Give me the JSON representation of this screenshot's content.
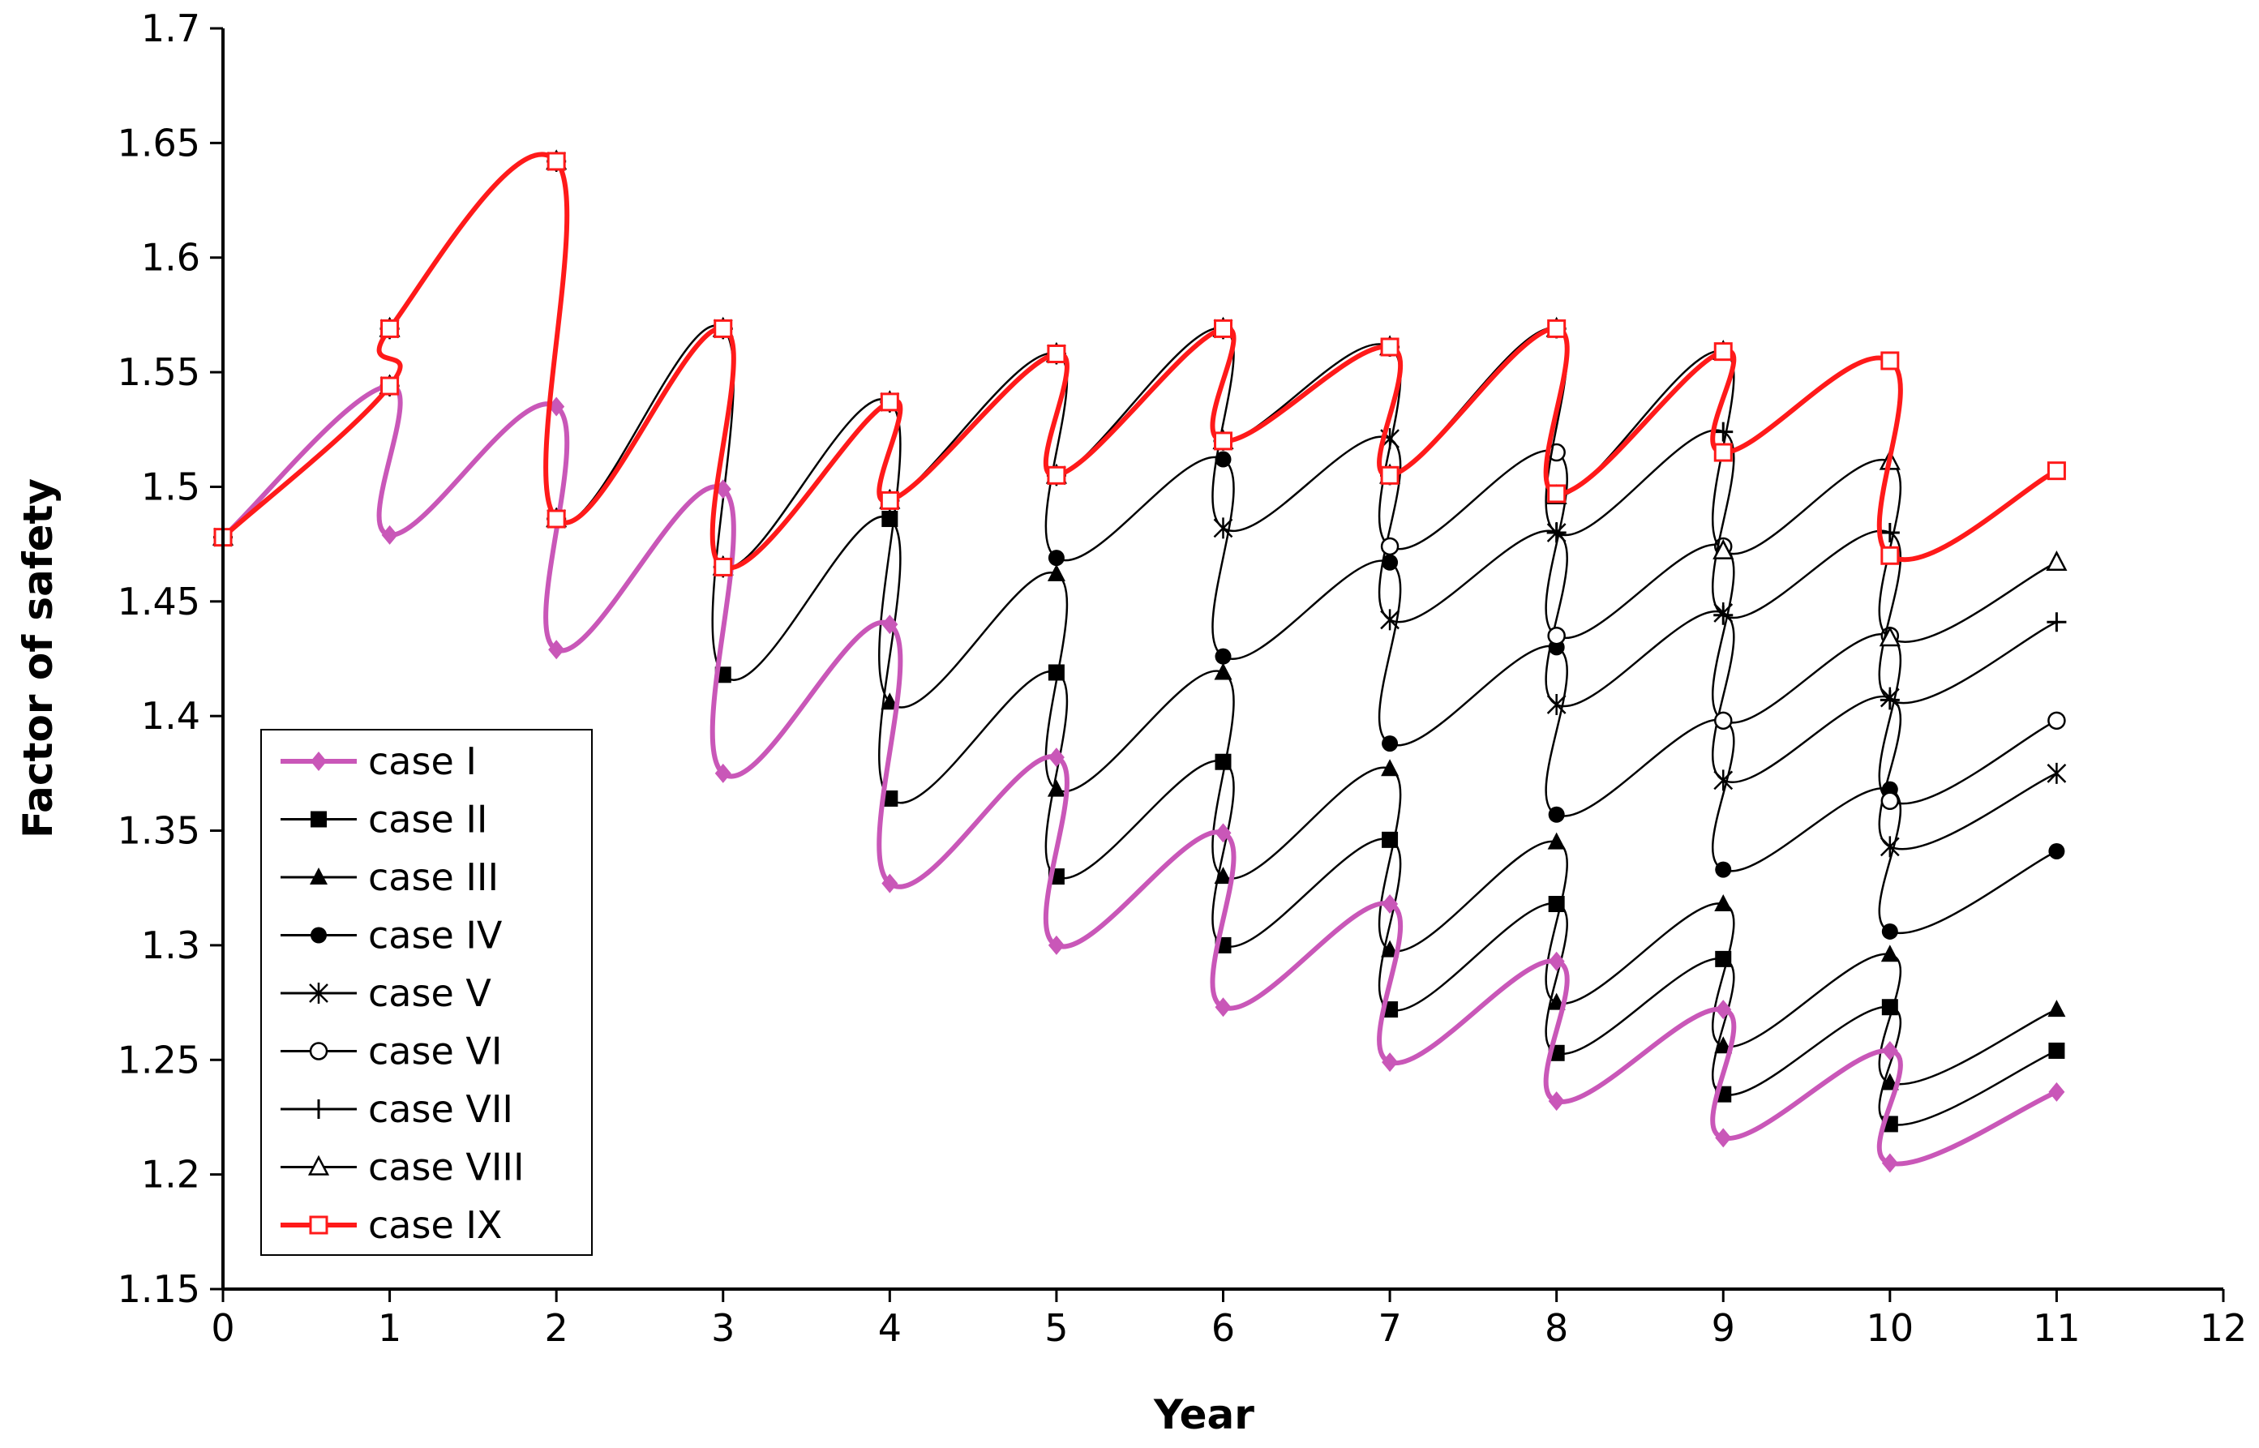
{
  "chart_data": {
    "type": "line",
    "title": "",
    "xlabel": "Year",
    "ylabel": "Factor of safety",
    "xlim": [
      0,
      12
    ],
    "ylim": [
      1.15,
      1.7
    ],
    "xticks": [
      "0",
      "1",
      "2",
      "3",
      "4",
      "5",
      "6",
      "7",
      "8",
      "9",
      "10",
      "11",
      "12"
    ],
    "yticks": [
      "1.15",
      "1.2",
      "1.25",
      "1.3",
      "1.35",
      "1.4",
      "1.45",
      "1.5",
      "1.55",
      "1.6",
      "1.65",
      "1.7"
    ],
    "legend_position": "lower-left",
    "series": [
      {
        "name": "case I",
        "color": "#c957b8",
        "marker": "diamond-filled",
        "points": [
          [
            0,
            1.478
          ],
          [
            1,
            1.544
          ],
          [
            1,
            1.479
          ],
          [
            2,
            1.535
          ],
          [
            2,
            1.429
          ],
          [
            3,
            1.499
          ],
          [
            3,
            1.375
          ],
          [
            4,
            1.44
          ],
          [
            4,
            1.327
          ],
          [
            5,
            1.382
          ],
          [
            5,
            1.3
          ],
          [
            6,
            1.349
          ],
          [
            6,
            1.273
          ],
          [
            7,
            1.318
          ],
          [
            7,
            1.249
          ],
          [
            8,
            1.293
          ],
          [
            8,
            1.232
          ],
          [
            9,
            1.272
          ],
          [
            9,
            1.216
          ],
          [
            10,
            1.254
          ],
          [
            10,
            1.205
          ],
          [
            11,
            1.236
          ]
        ]
      },
      {
        "name": "case II",
        "color": "#000000",
        "marker": "square-filled",
        "points": [
          [
            0,
            1.478
          ],
          [
            1,
            1.544
          ],
          [
            1,
            1.569
          ],
          [
            2,
            1.642
          ],
          [
            2,
            1.486
          ],
          [
            3,
            1.569
          ],
          [
            3,
            1.418
          ],
          [
            4,
            1.486
          ],
          [
            4,
            1.364
          ],
          [
            5,
            1.419
          ],
          [
            5,
            1.33
          ],
          [
            6,
            1.38
          ],
          [
            6,
            1.3
          ],
          [
            7,
            1.346
          ],
          [
            7,
            1.272
          ],
          [
            8,
            1.318
          ],
          [
            8,
            1.253
          ],
          [
            9,
            1.294
          ],
          [
            9,
            1.235
          ],
          [
            10,
            1.273
          ],
          [
            10,
            1.222
          ],
          [
            11,
            1.254
          ]
        ]
      },
      {
        "name": "case III",
        "color": "#000000",
        "marker": "triangle-filled",
        "points": [
          [
            0,
            1.478
          ],
          [
            1,
            1.544
          ],
          [
            1,
            1.569
          ],
          [
            2,
            1.642
          ],
          [
            2,
            1.486
          ],
          [
            3,
            1.569
          ],
          [
            3,
            1.465
          ],
          [
            4,
            1.537
          ],
          [
            4,
            1.406
          ],
          [
            5,
            1.462
          ],
          [
            5,
            1.368
          ],
          [
            6,
            1.419
          ],
          [
            6,
            1.33
          ],
          [
            7,
            1.377
          ],
          [
            7,
            1.298
          ],
          [
            8,
            1.345
          ],
          [
            8,
            1.275
          ],
          [
            9,
            1.318
          ],
          [
            9,
            1.256
          ],
          [
            10,
            1.296
          ],
          [
            10,
            1.24
          ],
          [
            11,
            1.272
          ]
        ]
      },
      {
        "name": "case IV",
        "color": "#000000",
        "marker": "circle-filled",
        "points": [
          [
            0,
            1.478
          ],
          [
            1,
            1.544
          ],
          [
            1,
            1.569
          ],
          [
            2,
            1.642
          ],
          [
            2,
            1.486
          ],
          [
            3,
            1.569
          ],
          [
            3,
            1.465
          ],
          [
            4,
            1.537
          ],
          [
            4,
            1.494
          ],
          [
            5,
            1.558
          ],
          [
            5,
            1.469
          ],
          [
            6,
            1.512
          ],
          [
            6,
            1.426
          ],
          [
            7,
            1.467
          ],
          [
            7,
            1.388
          ],
          [
            8,
            1.43
          ],
          [
            8,
            1.357
          ],
          [
            9,
            1.398
          ],
          [
            9,
            1.333
          ],
          [
            10,
            1.368
          ],
          [
            10,
            1.306
          ],
          [
            11,
            1.341
          ]
        ]
      },
      {
        "name": "case V",
        "color": "#000000",
        "marker": "star",
        "points": [
          [
            0,
            1.478
          ],
          [
            1,
            1.544
          ],
          [
            1,
            1.569
          ],
          [
            2,
            1.642
          ],
          [
            2,
            1.486
          ],
          [
            3,
            1.569
          ],
          [
            3,
            1.465
          ],
          [
            4,
            1.537
          ],
          [
            4,
            1.494
          ],
          [
            5,
            1.558
          ],
          [
            5,
            1.505
          ],
          [
            6,
            1.569
          ],
          [
            6,
            1.482
          ],
          [
            7,
            1.521
          ],
          [
            7,
            1.442
          ],
          [
            8,
            1.48
          ],
          [
            8,
            1.405
          ],
          [
            9,
            1.445
          ],
          [
            9,
            1.372
          ],
          [
            10,
            1.408
          ],
          [
            10,
            1.343
          ],
          [
            11,
            1.375
          ]
        ]
      },
      {
        "name": "case VI",
        "color": "#000000",
        "marker": "circle-open",
        "points": [
          [
            0,
            1.478
          ],
          [
            1,
            1.544
          ],
          [
            1,
            1.569
          ],
          [
            2,
            1.642
          ],
          [
            2,
            1.486
          ],
          [
            3,
            1.569
          ],
          [
            3,
            1.465
          ],
          [
            4,
            1.537
          ],
          [
            4,
            1.494
          ],
          [
            5,
            1.558
          ],
          [
            5,
            1.505
          ],
          [
            6,
            1.569
          ],
          [
            6,
            1.52
          ],
          [
            7,
            1.561
          ],
          [
            7,
            1.474
          ],
          [
            8,
            1.515
          ],
          [
            8,
            1.435
          ],
          [
            9,
            1.474
          ],
          [
            9,
            1.398
          ],
          [
            10,
            1.435
          ],
          [
            10,
            1.363
          ],
          [
            11,
            1.398
          ]
        ]
      },
      {
        "name": "case VII",
        "color": "#000000",
        "marker": "plus",
        "points": [
          [
            0,
            1.478
          ],
          [
            1,
            1.544
          ],
          [
            1,
            1.569
          ],
          [
            2,
            1.642
          ],
          [
            2,
            1.486
          ],
          [
            3,
            1.569
          ],
          [
            3,
            1.465
          ],
          [
            4,
            1.537
          ],
          [
            4,
            1.494
          ],
          [
            5,
            1.558
          ],
          [
            5,
            1.505
          ],
          [
            6,
            1.569
          ],
          [
            6,
            1.52
          ],
          [
            7,
            1.561
          ],
          [
            7,
            1.505
          ],
          [
            8,
            1.569
          ],
          [
            8,
            1.48
          ],
          [
            9,
            1.524
          ],
          [
            9,
            1.444
          ],
          [
            10,
            1.48
          ],
          [
            10,
            1.407
          ],
          [
            11,
            1.441
          ]
        ]
      },
      {
        "name": "case VIII",
        "color": "#000000",
        "marker": "triangle-open",
        "points": [
          [
            0,
            1.478
          ],
          [
            1,
            1.544
          ],
          [
            1,
            1.569
          ],
          [
            2,
            1.642
          ],
          [
            2,
            1.486
          ],
          [
            3,
            1.569
          ],
          [
            3,
            1.465
          ],
          [
            4,
            1.537
          ],
          [
            4,
            1.494
          ],
          [
            5,
            1.558
          ],
          [
            5,
            1.505
          ],
          [
            6,
            1.569
          ],
          [
            6,
            1.52
          ],
          [
            7,
            1.561
          ],
          [
            7,
            1.505
          ],
          [
            8,
            1.569
          ],
          [
            8,
            1.496
          ],
          [
            9,
            1.559
          ],
          [
            9,
            1.472
          ],
          [
            10,
            1.511
          ],
          [
            10,
            1.434
          ],
          [
            11,
            1.467
          ]
        ]
      },
      {
        "name": "case IX",
        "color": "#ff1a1a",
        "marker": "square-open",
        "points": [
          [
            0,
            1.478
          ],
          [
            1,
            1.544
          ],
          [
            1,
            1.569
          ],
          [
            2,
            1.642
          ],
          [
            2,
            1.486
          ],
          [
            3,
            1.569
          ],
          [
            3,
            1.465
          ],
          [
            4,
            1.537
          ],
          [
            4,
            1.494
          ],
          [
            5,
            1.558
          ],
          [
            5,
            1.505
          ],
          [
            6,
            1.569
          ],
          [
            6,
            1.52
          ],
          [
            7,
            1.561
          ],
          [
            7,
            1.505
          ],
          [
            8,
            1.569
          ],
          [
            8,
            1.497
          ],
          [
            9,
            1.559
          ],
          [
            9,
            1.515
          ],
          [
            10,
            1.555
          ],
          [
            10,
            1.47
          ],
          [
            11,
            1.507
          ]
        ]
      }
    ]
  }
}
